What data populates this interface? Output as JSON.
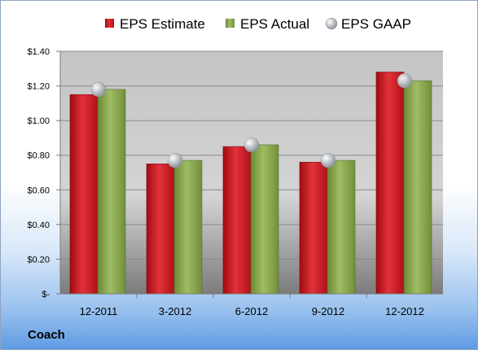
{
  "company": "Coach",
  "chart_data": {
    "type": "bar",
    "categories": [
      "12-2011",
      "3-2012",
      "6-2012",
      "9-2012",
      "12-2012"
    ],
    "series": [
      {
        "name": "EPS Estimate",
        "values": [
          1.15,
          0.75,
          0.85,
          0.76,
          1.28
        ],
        "color": "#c8141b"
      },
      {
        "name": "EPS Actual",
        "values": [
          1.18,
          0.77,
          0.86,
          0.77,
          1.23
        ],
        "color": "#83a14a"
      },
      {
        "name": "EPS GAAP",
        "values": [
          1.18,
          0.77,
          0.86,
          0.77,
          1.23
        ],
        "color": "#b7bcc4"
      }
    ],
    "y_ticks": [
      {
        "value": 0,
        "label": "$-"
      },
      {
        "value": 0.2,
        "label": "$0.20"
      },
      {
        "value": 0.4,
        "label": "$0.40"
      },
      {
        "value": 0.6,
        "label": "$0.60"
      },
      {
        "value": 0.8,
        "label": "$0.80"
      },
      {
        "value": 1.0,
        "label": "$1.00"
      },
      {
        "value": 1.2,
        "label": "$1.20"
      },
      {
        "value": 1.4,
        "label": "$1.40"
      }
    ],
    "ylim": [
      0,
      1.4
    ],
    "grid": true,
    "legend_position": "top"
  }
}
